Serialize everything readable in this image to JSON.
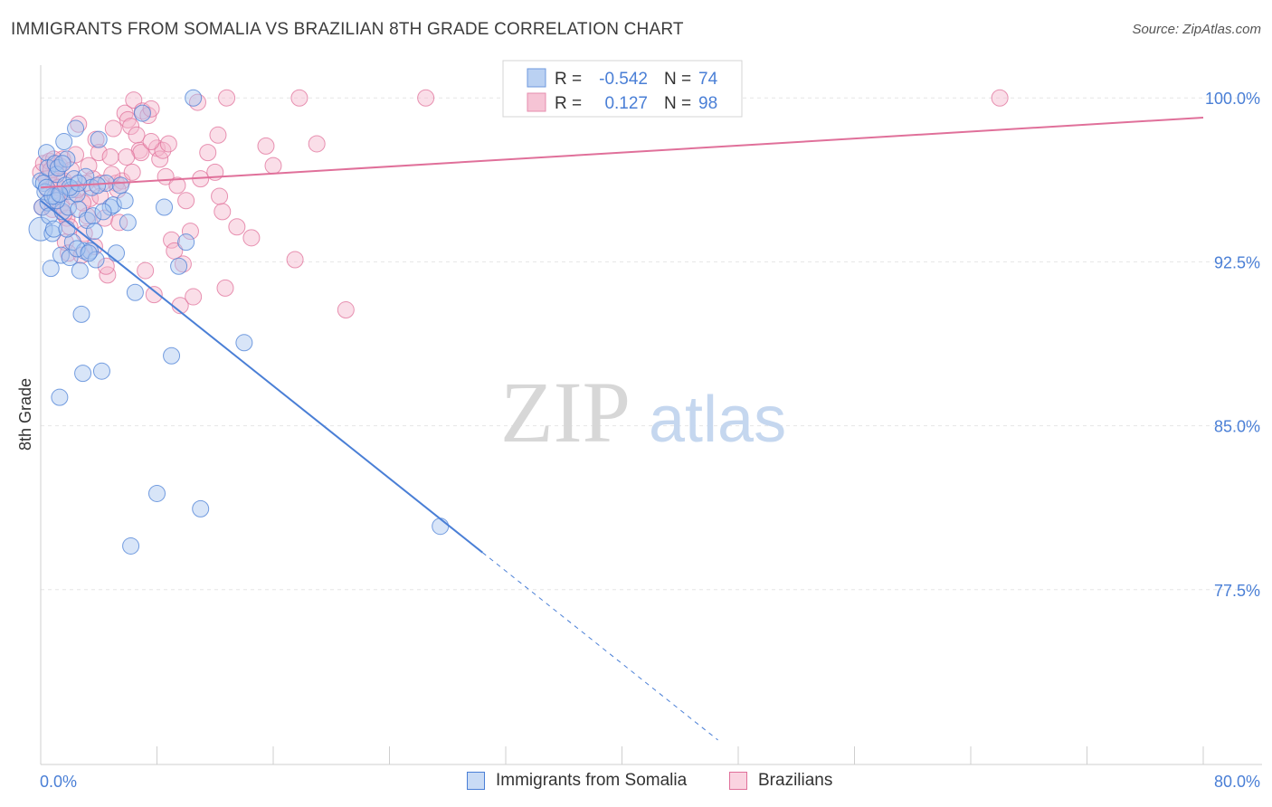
{
  "title": "IMMIGRANTS FROM SOMALIA VS BRAZILIAN 8TH GRADE CORRELATION CHART",
  "source": "Source: ZipAtlas.com",
  "watermark": {
    "zip": "ZIP",
    "atlas": "atlas"
  },
  "colors": {
    "blue": "#4a7fd6",
    "blue_fill": "#a9c6ef",
    "pink": "#e0709a",
    "pink_fill": "#f4b6cb"
  },
  "legend": {
    "rows": [
      {
        "r_label": "R =",
        "r_value": "-0.542",
        "n_label": "N =",
        "n_value": "74"
      },
      {
        "r_label": "R =",
        "r_value": "0.127",
        "n_label": "N =",
        "n_value": "98"
      }
    ]
  },
  "bottom_legend": {
    "blue": "Immigrants from Somalia",
    "pink": "Brazilians"
  },
  "chart_data": {
    "type": "scatter",
    "ylabel": "8th Grade",
    "xlim": [
      0,
      80
    ],
    "ylim": [
      69.5,
      101.5
    ],
    "x_tick_labels": [
      "0.0%",
      "80.0%"
    ],
    "y_ticks": [
      {
        "value": 100,
        "label": "100.0%"
      },
      {
        "value": 92.5,
        "label": "92.5%"
      },
      {
        "value": 85,
        "label": "85.0%"
      },
      {
        "value": 77.5,
        "label": "77.5%"
      }
    ],
    "series": [
      {
        "name": "Immigrants from Somalia",
        "r": -0.542,
        "n": 74,
        "trend": {
          "x1": 0.0,
          "y1": 95.3,
          "x2": 30.4,
          "y2": 79.2,
          "dash_to_x": 46.6
        },
        "points": [
          [
            0.0,
            94.0
          ],
          [
            0.0,
            96.2
          ],
          [
            0.1,
            95.0
          ],
          [
            0.2,
            96.1
          ],
          [
            0.3,
            95.7
          ],
          [
            0.4,
            97.5
          ],
          [
            0.5,
            96.8
          ],
          [
            0.5,
            95.2
          ],
          [
            0.6,
            94.6
          ],
          [
            0.7,
            92.2
          ],
          [
            0.8,
            93.8
          ],
          [
            0.9,
            94.0
          ],
          [
            1.0,
            97.0
          ],
          [
            1.0,
            95.5
          ],
          [
            1.1,
            96.5
          ],
          [
            1.2,
            96.8
          ],
          [
            1.3,
            86.3
          ],
          [
            1.4,
            92.8
          ],
          [
            1.5,
            94.8
          ],
          [
            1.6,
            98.0
          ],
          [
            1.7,
            96.0
          ],
          [
            1.8,
            97.2
          ],
          [
            1.9,
            95.0
          ],
          [
            2.0,
            92.7
          ],
          [
            2.1,
            95.8
          ],
          [
            2.2,
            93.4
          ],
          [
            2.3,
            96.3
          ],
          [
            2.4,
            98.6
          ],
          [
            2.5,
            95.6
          ],
          [
            2.6,
            94.9
          ],
          [
            2.7,
            92.1
          ],
          [
            2.8,
            90.1
          ],
          [
            2.9,
            87.4
          ],
          [
            3.0,
            93.0
          ],
          [
            3.1,
            96.4
          ],
          [
            3.2,
            94.4
          ],
          [
            3.4,
            93.0
          ],
          [
            3.5,
            95.9
          ],
          [
            3.6,
            94.6
          ],
          [
            3.7,
            93.9
          ],
          [
            3.8,
            92.6
          ],
          [
            4.0,
            98.1
          ],
          [
            4.2,
            87.5
          ],
          [
            4.5,
            96.1
          ],
          [
            4.8,
            95.0
          ],
          [
            5.0,
            95.1
          ],
          [
            5.2,
            92.9
          ],
          [
            5.5,
            96.0
          ],
          [
            6.0,
            94.3
          ],
          [
            6.2,
            79.5
          ],
          [
            6.5,
            91.1
          ],
          [
            7.0,
            99.3
          ],
          [
            8.0,
            81.9
          ],
          [
            8.5,
            95.0
          ],
          [
            9.0,
            88.2
          ],
          [
            9.5,
            92.3
          ],
          [
            10.0,
            93.4
          ],
          [
            10.5,
            100.0
          ],
          [
            11.0,
            81.2
          ],
          [
            14.0,
            88.8
          ],
          [
            27.5,
            80.4
          ],
          [
            1.1,
            95.3
          ],
          [
            2.5,
            93.1
          ],
          [
            3.3,
            92.9
          ],
          [
            1.5,
            97.0
          ],
          [
            0.8,
            95.5
          ],
          [
            2.0,
            95.9
          ],
          [
            4.3,
            94.8
          ],
          [
            5.8,
            95.3
          ],
          [
            0.4,
            95.9
          ],
          [
            1.8,
            94.0
          ],
          [
            3.9,
            96.0
          ],
          [
            2.6,
            96.1
          ],
          [
            1.3,
            95.6
          ]
        ]
      },
      {
        "name": "Brazilians",
        "r": 0.127,
        "n": 98,
        "trend": {
          "x1": 0.0,
          "y1": 95.9,
          "x2": 80.0,
          "y2": 99.1
        },
        "points": [
          [
            0.0,
            96.6
          ],
          [
            0.1,
            95.0
          ],
          [
            0.2,
            97.0
          ],
          [
            0.4,
            96.3
          ],
          [
            0.5,
            95.8
          ],
          [
            0.6,
            97.1
          ],
          [
            0.7,
            96.7
          ],
          [
            0.8,
            94.9
          ],
          [
            0.9,
            96.0
          ],
          [
            1.0,
            97.0
          ],
          [
            1.1,
            96.5
          ],
          [
            1.2,
            95.6
          ],
          [
            1.3,
            96.9
          ],
          [
            1.4,
            95.1
          ],
          [
            1.5,
            97.2
          ],
          [
            1.6,
            96.2
          ],
          [
            1.7,
            93.4
          ],
          [
            1.8,
            94.5
          ],
          [
            1.9,
            92.9
          ],
          [
            2.0,
            94.1
          ],
          [
            2.2,
            95.5
          ],
          [
            2.4,
            97.4
          ],
          [
            2.6,
            98.8
          ],
          [
            2.8,
            92.8
          ],
          [
            3.0,
            93.8
          ],
          [
            3.2,
            94.6
          ],
          [
            3.4,
            95.4
          ],
          [
            3.6,
            96.3
          ],
          [
            3.8,
            98.1
          ],
          [
            4.0,
            97.5
          ],
          [
            4.2,
            96.1
          ],
          [
            4.4,
            94.5
          ],
          [
            4.6,
            91.9
          ],
          [
            4.8,
            97.3
          ],
          [
            5.0,
            98.6
          ],
          [
            5.2,
            96.1
          ],
          [
            5.4,
            94.3
          ],
          [
            5.6,
            96.2
          ],
          [
            5.8,
            99.3
          ],
          [
            6.0,
            99.0
          ],
          [
            6.2,
            98.7
          ],
          [
            6.4,
            99.9
          ],
          [
            6.6,
            98.3
          ],
          [
            6.8,
            97.6
          ],
          [
            7.0,
            99.4
          ],
          [
            7.2,
            92.1
          ],
          [
            7.4,
            99.2
          ],
          [
            7.6,
            99.5
          ],
          [
            7.8,
            91.0
          ],
          [
            8.0,
            97.7
          ],
          [
            8.2,
            97.2
          ],
          [
            8.4,
            97.6
          ],
          [
            8.6,
            96.4
          ],
          [
            9.0,
            93.5
          ],
          [
            9.2,
            93.0
          ],
          [
            9.4,
            96.0
          ],
          [
            9.6,
            90.5
          ],
          [
            9.8,
            92.4
          ],
          [
            10.0,
            95.3
          ],
          [
            10.5,
            90.9
          ],
          [
            10.8,
            99.8
          ],
          [
            11.0,
            96.3
          ],
          [
            11.5,
            97.5
          ],
          [
            12.0,
            96.6
          ],
          [
            12.2,
            98.3
          ],
          [
            12.5,
            94.8
          ],
          [
            12.7,
            91.3
          ],
          [
            12.8,
            100.0
          ],
          [
            13.5,
            94.1
          ],
          [
            14.5,
            93.6
          ],
          [
            15.5,
            97.8
          ],
          [
            16.0,
            96.9
          ],
          [
            17.5,
            92.6
          ],
          [
            17.8,
            100.0
          ],
          [
            19.0,
            97.9
          ],
          [
            21.0,
            90.3
          ],
          [
            26.5,
            100.0
          ],
          [
            66.0,
            100.0
          ],
          [
            6.9,
            97.5
          ],
          [
            4.9,
            96.5
          ],
          [
            3.3,
            96.9
          ],
          [
            1.6,
            94.7
          ],
          [
            2.1,
            96.7
          ],
          [
            0.9,
            97.2
          ],
          [
            5.3,
            95.8
          ],
          [
            7.6,
            98.0
          ],
          [
            2.9,
            95.2
          ],
          [
            4.1,
            95.5
          ],
          [
            6.3,
            96.6
          ],
          [
            8.8,
            97.9
          ],
          [
            3.7,
            93.2
          ],
          [
            1.2,
            95.9
          ],
          [
            10.3,
            93.9
          ],
          [
            5.9,
            97.3
          ],
          [
            12.3,
            95.5
          ],
          [
            4.5,
            92.3
          ],
          [
            2.5,
            95.8
          ],
          [
            3.1,
            96.1
          ]
        ]
      }
    ]
  }
}
